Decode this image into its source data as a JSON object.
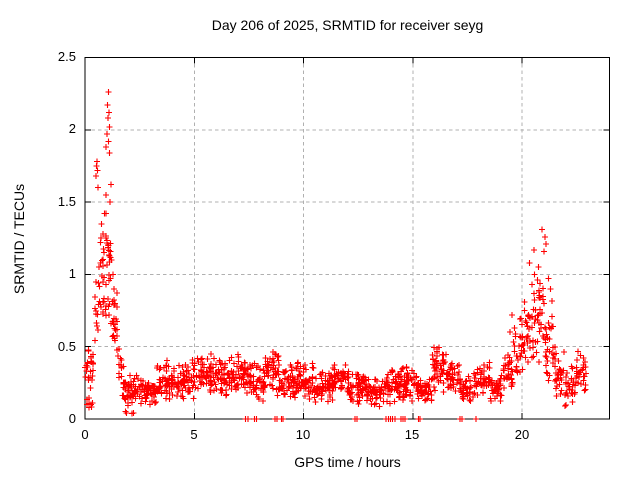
{
  "window": {
    "background": "#ffffff"
  },
  "chart_data": {
    "type": "scatter",
    "title": "Day 206 of 2025, SRMTID for receiver seyg",
    "xlabel": "GPS time / hours",
    "ylabel": "SRMTID / TECUs",
    "xlim": [
      0,
      24
    ],
    "ylim": [
      0,
      2.5
    ],
    "xticks": [
      "0",
      "5",
      "10",
      "15",
      "20"
    ],
    "yticks": [
      "0",
      "0.5",
      "1",
      "1.5",
      "2",
      "2.5"
    ],
    "xtick_values": [
      0,
      5,
      10,
      15,
      20
    ],
    "ytick_values": [
      0,
      0.5,
      1,
      1.5,
      2,
      2.5
    ],
    "grid": true,
    "grid_style": "dashed",
    "legend": "none",
    "marker": "plus",
    "marker_size": 7,
    "marker_color": "#ff0000",
    "grid_color": "#b0b0b0",
    "axis_color": "#000000",
    "text_color": "#000000",
    "seed": 206,
    "x_quantum_hours": 0.05,
    "peak_points": [
      [
        1.08,
        2.26
      ],
      [
        1.02,
        2.17
      ],
      [
        1.1,
        2.12
      ],
      [
        1.05,
        2.08
      ],
      [
        1.12,
        2.02
      ],
      [
        1.0,
        1.97
      ],
      [
        1.07,
        1.92
      ],
      [
        0.97,
        1.88
      ],
      [
        1.13,
        1.84
      ],
      [
        0.55,
        1.78
      ],
      [
        0.52,
        1.75
      ],
      [
        0.58,
        1.72
      ],
      [
        0.5,
        1.68
      ],
      [
        1.18,
        1.62
      ],
      [
        0.6,
        1.6
      ],
      [
        0.95,
        1.55
      ],
      [
        1.15,
        1.5
      ],
      [
        0.9,
        1.42
      ],
      [
        0.75,
        1.35
      ],
      [
        0.82,
        1.28
      ],
      [
        0.7,
        1.22
      ],
      [
        0.87,
        1.15
      ],
      [
        1.22,
        1.1
      ],
      [
        0.65,
        1.05
      ],
      [
        1.28,
        1.0
      ],
      [
        1.33,
        0.9
      ],
      [
        1.38,
        0.8
      ],
      [
        20.9,
        1.31
      ],
      [
        21.05,
        1.26
      ],
      [
        21.1,
        1.21
      ],
      [
        20.55,
        1.17
      ],
      [
        21.0,
        1.16
      ],
      [
        20.35,
        1.08
      ],
      [
        20.75,
        1.05
      ],
      [
        21.2,
        0.97
      ],
      [
        20.45,
        0.93
      ],
      [
        21.3,
        0.9
      ],
      [
        19.55,
        0.72
      ],
      [
        19.45,
        0.6
      ]
    ],
    "zero_points_x": [
      7.35,
      7.45,
      7.75,
      7.85,
      8.7,
      8.78,
      9.0,
      9.06,
      12.35,
      12.45,
      13.78,
      13.88,
      13.98,
      14.08,
      14.18,
      14.45,
      14.55,
      14.65,
      15.25,
      15.32,
      17.15,
      17.25,
      17.9
    ],
    "scatter_bands": {
      "format": [
        "x_start",
        "x_end",
        "count",
        "y_min",
        "y_max"
      ],
      "data": [
        [
          0.0,
          0.45,
          24,
          0.18,
          0.55
        ],
        [
          0.02,
          0.4,
          8,
          0.04,
          0.16
        ],
        [
          0.45,
          0.72,
          16,
          0.45,
          1.05
        ],
        [
          0.72,
          0.95,
          16,
          0.5,
          1.35
        ],
        [
          0.95,
          1.2,
          26,
          0.55,
          1.6
        ],
        [
          1.2,
          1.5,
          22,
          0.3,
          1.0
        ],
        [
          1.5,
          1.8,
          18,
          0.12,
          0.5
        ],
        [
          1.8,
          2.6,
          55,
          0.08,
          0.32
        ],
        [
          1.85,
          2.4,
          4,
          0.02,
          0.06
        ],
        [
          2.6,
          3.3,
          50,
          0.08,
          0.28
        ],
        [
          3.3,
          4.1,
          55,
          0.12,
          0.42
        ],
        [
          4.1,
          5.0,
          60,
          0.1,
          0.42
        ],
        [
          5.0,
          5.9,
          60,
          0.14,
          0.45
        ],
        [
          5.9,
          6.7,
          55,
          0.12,
          0.45
        ],
        [
          6.7,
          7.4,
          50,
          0.15,
          0.45
        ],
        [
          7.4,
          8.2,
          55,
          0.12,
          0.42
        ],
        [
          8.2,
          8.9,
          50,
          0.15,
          0.52
        ],
        [
          8.9,
          9.7,
          55,
          0.1,
          0.4
        ],
        [
          9.7,
          10.5,
          55,
          0.12,
          0.4
        ],
        [
          10.5,
          11.3,
          55,
          0.1,
          0.34
        ],
        [
          11.3,
          12.1,
          55,
          0.12,
          0.4
        ],
        [
          12.1,
          12.9,
          55,
          0.1,
          0.34
        ],
        [
          12.9,
          13.7,
          55,
          0.08,
          0.3
        ],
        [
          13.7,
          14.5,
          55,
          0.1,
          0.36
        ],
        [
          14.5,
          15.2,
          50,
          0.1,
          0.38
        ],
        [
          15.2,
          15.9,
          45,
          0.08,
          0.3
        ],
        [
          15.9,
          16.55,
          50,
          0.18,
          0.52
        ],
        [
          16.55,
          17.2,
          45,
          0.15,
          0.42
        ],
        [
          17.2,
          17.8,
          40,
          0.1,
          0.3
        ],
        [
          17.8,
          18.55,
          45,
          0.15,
          0.42
        ],
        [
          18.55,
          19.05,
          35,
          0.1,
          0.32
        ],
        [
          19.05,
          19.6,
          35,
          0.15,
          0.45
        ],
        [
          19.6,
          20.1,
          32,
          0.25,
          0.72
        ],
        [
          20.1,
          20.55,
          32,
          0.3,
          0.95
        ],
        [
          20.55,
          21.05,
          34,
          0.35,
          1.1
        ],
        [
          21.05,
          21.45,
          30,
          0.25,
          0.85
        ],
        [
          21.45,
          21.95,
          32,
          0.12,
          0.55
        ],
        [
          21.95,
          22.45,
          28,
          0.08,
          0.4
        ],
        [
          22.45,
          22.95,
          30,
          0.15,
          0.52
        ]
      ]
    }
  }
}
